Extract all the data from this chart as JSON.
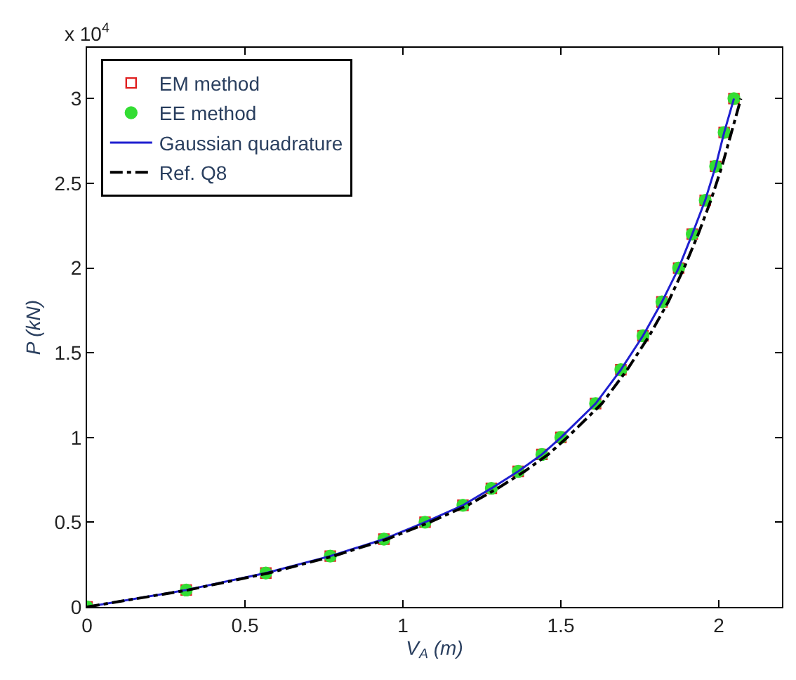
{
  "chart_data": {
    "type": "line",
    "xlabel": "V$_{A}$ (m)",
    "ylabel": "P (kN)",
    "annotations": [
      "x 10$^{4}$"
    ],
    "xlim": [
      0,
      2.2
    ],
    "xticks": [
      0,
      0.5,
      1,
      1.5,
      2
    ],
    "ylim": [
      0,
      3.3
    ],
    "yticks": [
      0,
      0.5,
      1,
      1.5,
      2,
      2.5,
      3
    ],
    "legend": "top left",
    "series": [
      {
        "name": "EM method",
        "type": "scatter",
        "marker": "square",
        "color": "#e02020",
        "x": [
          0,
          0.314,
          0.566,
          0.77,
          0.94,
          1.07,
          1.19,
          1.28,
          1.365,
          1.44,
          1.5,
          1.61,
          1.69,
          1.76,
          1.82,
          1.873,
          1.916,
          1.957,
          1.99,
          2.017,
          2.048
        ],
        "values": [
          0,
          0.1,
          0.2,
          0.3,
          0.4,
          0.5,
          0.6,
          0.7,
          0.8,
          0.9,
          1.0,
          1.2,
          1.4,
          1.6,
          1.8,
          2.0,
          2.2,
          2.4,
          2.6,
          2.8,
          3.0
        ]
      },
      {
        "name": "EE method",
        "type": "scatter",
        "marker": "circle",
        "color": "#33dd33",
        "x": [
          0,
          0.314,
          0.566,
          0.77,
          0.94,
          1.07,
          1.19,
          1.28,
          1.365,
          1.44,
          1.5,
          1.61,
          1.69,
          1.76,
          1.82,
          1.873,
          1.916,
          1.957,
          1.99,
          2.017,
          2.048
        ],
        "values": [
          0,
          0.1,
          0.2,
          0.3,
          0.4,
          0.5,
          0.6,
          0.7,
          0.8,
          0.9,
          1.0,
          1.2,
          1.4,
          1.6,
          1.8,
          2.0,
          2.2,
          2.4,
          2.6,
          2.8,
          3.0
        ]
      },
      {
        "name": "Gaussian quadrature",
        "marker": "none",
        "line_style": "solid",
        "color": "#1f1fd0",
        "x": [
          0,
          0.314,
          0.566,
          0.77,
          0.94,
          1.07,
          1.19,
          1.28,
          1.365,
          1.44,
          1.5,
          1.61,
          1.69,
          1.76,
          1.82,
          1.873,
          1.916,
          1.957,
          1.99,
          2.017,
          2.048
        ],
        "values": [
          0,
          0.1,
          0.2,
          0.3,
          0.4,
          0.5,
          0.6,
          0.7,
          0.8,
          0.9,
          1.0,
          1.2,
          1.4,
          1.6,
          1.8,
          2.0,
          2.2,
          2.4,
          2.6,
          2.8,
          3.0
        ]
      },
      {
        "name": "Ref. Q8",
        "marker": "none",
        "line_style": "dashdot",
        "color": "#000000",
        "x": [
          0,
          0.32,
          0.575,
          0.78,
          0.95,
          1.085,
          1.205,
          1.3,
          1.385,
          1.46,
          1.52,
          1.63,
          1.71,
          1.78,
          1.84,
          1.89,
          1.935,
          1.975,
          2.01,
          2.04,
          2.07
        ],
        "values": [
          0,
          0.1,
          0.2,
          0.3,
          0.4,
          0.5,
          0.6,
          0.7,
          0.8,
          0.9,
          1.0,
          1.2,
          1.4,
          1.6,
          1.8,
          2.0,
          2.2,
          2.4,
          2.6,
          2.8,
          3.0
        ]
      }
    ]
  }
}
